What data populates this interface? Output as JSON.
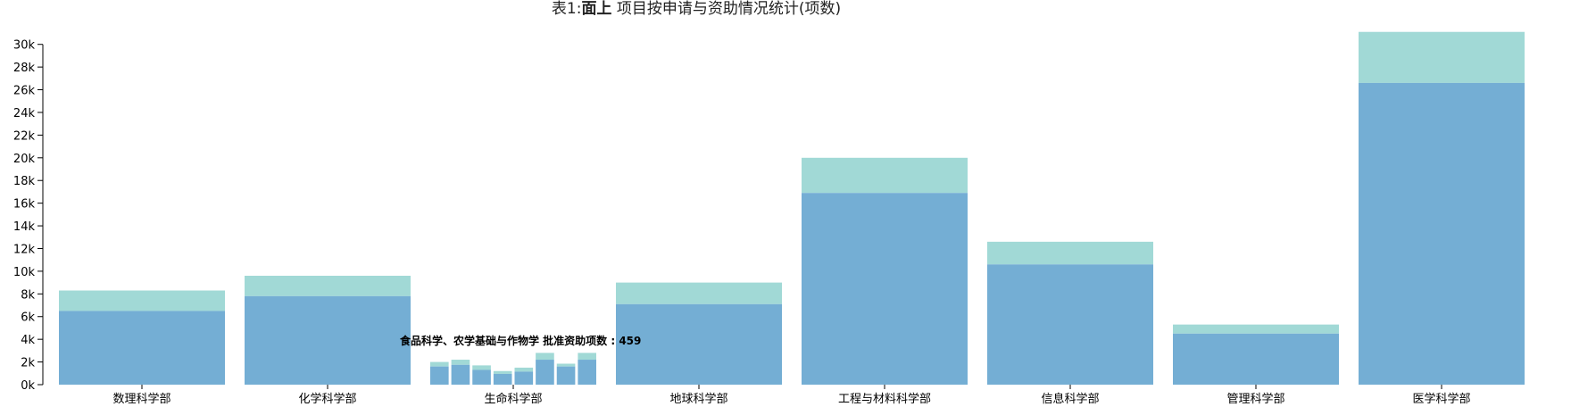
{
  "title": {
    "prefix": "表1:",
    "emph": "面上",
    "rest": " 项目按申请与资助情况统计(项数)"
  },
  "tooltip": {
    "text": "食品科学、农学基础与作物学 批准资助项数 : 459"
  },
  "colors": {
    "approved": "#74aed4",
    "applied": "#a1d9d6",
    "axis": "#000000"
  },
  "chart_data": {
    "type": "bar",
    "title": "表1:面上 项目按申请与资助情况统计(项数)",
    "ylim": [
      0,
      31000
    ],
    "yticks": [
      0,
      2000,
      4000,
      6000,
      8000,
      10000,
      12000,
      14000,
      16000,
      18000,
      20000,
      22000,
      24000,
      26000,
      28000,
      30000
    ],
    "ytick_labels": [
      "0k",
      "2k",
      "4k",
      "6k",
      "8k",
      "10k",
      "12k",
      "14k",
      "16k",
      "18k",
      "20k",
      "22k",
      "24k",
      "26k",
      "28k",
      "30k"
    ],
    "categories": [
      "数理科学部",
      "化学科学部",
      "生命科学部",
      "地球科学部",
      "工程与材料科学部",
      "信息科学部",
      "管理科学部",
      "医学科学部"
    ],
    "series": [
      {
        "values": [
          6500,
          7800,
          null,
          7100,
          16900,
          10600,
          4500,
          26600
        ]
      },
      {
        "values": [
          8300,
          9600,
          null,
          9000,
          20000,
          12600,
          5300,
          31100
        ]
      }
    ],
    "sub_bars": {
      "category": "生命科学部",
      "approved": [
        1600,
        1750,
        1300,
        950,
        1150,
        2200,
        1600,
        2200
      ],
      "total": [
        2000,
        2200,
        1700,
        1200,
        1500,
        2800,
        1850,
        2800
      ]
    },
    "grid": false
  }
}
